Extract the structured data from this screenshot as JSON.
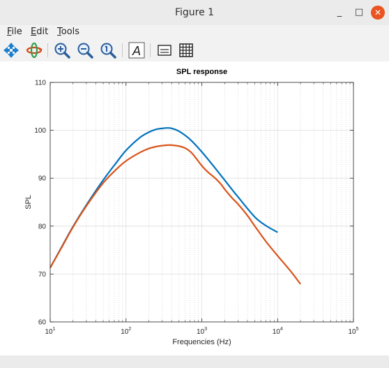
{
  "window": {
    "title": "Figure 1",
    "minimize_label": "_",
    "maximize_label": "□",
    "close_label": "✕"
  },
  "menubar": {
    "items": [
      {
        "label": "File",
        "mnemonic": "F",
        "rest": "ile"
      },
      {
        "label": "Edit",
        "mnemonic": "E",
        "rest": "dit"
      },
      {
        "label": "Tools",
        "mnemonic": "T",
        "rest": "ools"
      }
    ]
  },
  "toolbar": {
    "icons": [
      "pan-icon",
      "rotate-3d-icon",
      "zoom-in-icon",
      "zoom-out-icon",
      "zoom-reset-icon",
      "insert-text-icon",
      "legend-icon",
      "grid-icon"
    ],
    "text_glyph": "A"
  },
  "chart_data": {
    "type": "line",
    "title": "SPL response",
    "xlabel": "Frequencies (Hz)",
    "ylabel": "SPL",
    "xscale": "log",
    "xlim": [
      10,
      100000
    ],
    "ylim": [
      60,
      110
    ],
    "grid": true,
    "minor_grid_x": true,
    "xticks": [
      {
        "base": "10",
        "exp": "1"
      },
      {
        "base": "10",
        "exp": "2"
      },
      {
        "base": "10",
        "exp": "3"
      },
      {
        "base": "10",
        "exp": "4"
      },
      {
        "base": "10",
        "exp": "5"
      }
    ],
    "yticks": [
      "60",
      "70",
      "80",
      "90",
      "100",
      "110"
    ],
    "series": [
      {
        "color": "#0072bd",
        "x": [
          10,
          14,
          20,
          30,
          50,
          75,
          100,
          150,
          200,
          250,
          300,
          350,
          400,
          500,
          700,
          1000,
          1500,
          2000,
          3000,
          5000,
          7000,
          10000
        ],
        "y": [
          71.3,
          75.5,
          79.9,
          84.4,
          89.6,
          93.3,
          95.8,
          98.4,
          99.6,
          100.2,
          100.4,
          100.5,
          100.4,
          99.8,
          98.1,
          95.5,
          92.1,
          89.6,
          86.1,
          81.9,
          80.1,
          78.7
        ]
      },
      {
        "color": "#d95319",
        "x": [
          10,
          14,
          20,
          30,
          50,
          75,
          100,
          150,
          200,
          250,
          300,
          350,
          400,
          500,
          600,
          700,
          800,
          1000,
          1200,
          1500,
          1800,
          2000,
          2500,
          3000,
          4000,
          5000,
          7000,
          10000,
          15000,
          20000
        ],
        "y": [
          71.3,
          75.4,
          79.8,
          84.2,
          89.0,
          91.9,
          93.6,
          95.3,
          96.2,
          96.6,
          96.8,
          96.9,
          96.9,
          96.7,
          96.3,
          95.6,
          94.6,
          92.6,
          91.3,
          90.0,
          88.7,
          87.7,
          85.9,
          84.6,
          82.2,
          80.0,
          76.8,
          73.8,
          70.5,
          67.9
        ]
      }
    ]
  }
}
